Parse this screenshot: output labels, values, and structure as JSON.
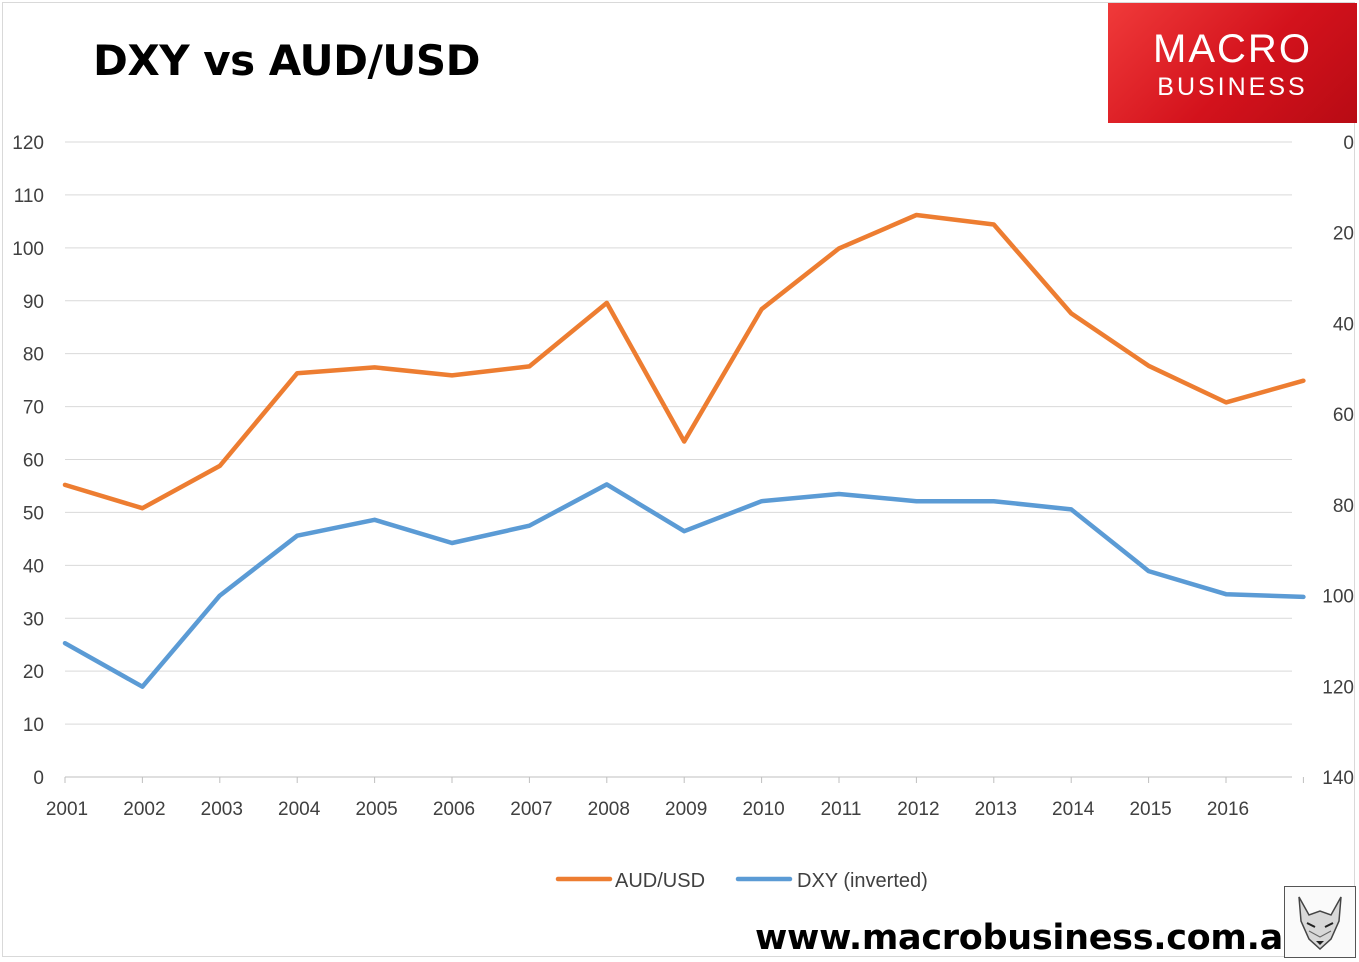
{
  "title": "DXY vs AUD/USD",
  "logo": {
    "line1": "MACRO",
    "line2": "BUSINESS"
  },
  "footer_url": "www.macrobusiness.com.au",
  "mascot_icon": "fox-icon",
  "chart_data": {
    "type": "line",
    "title": "DXY vs AUD/USD",
    "x": [
      "2001",
      "2002",
      "2003",
      "2004",
      "2005",
      "2006",
      "2007",
      "2008",
      "2009",
      "2010",
      "2011",
      "2012",
      "2013",
      "2014",
      "2015",
      "2016",
      "2016.9"
    ],
    "x_tick_labels": [
      "2001",
      "2002",
      "2003",
      "2004",
      "2005",
      "2006",
      "2007",
      "2008",
      "2009",
      "2010",
      "2011",
      "2012",
      "2013",
      "2014",
      "2015",
      "2016"
    ],
    "left_axis": {
      "ylim": [
        0,
        120
      ],
      "ticks": [
        0,
        10,
        20,
        30,
        40,
        50,
        60,
        70,
        80,
        90,
        100,
        110,
        120
      ]
    },
    "right_axis": {
      "ylim": [
        140,
        0
      ],
      "inverted": true,
      "ticks": [
        0,
        20,
        40,
        60,
        80,
        100,
        120,
        140
      ]
    },
    "grid": true,
    "legend_position": "bottom",
    "series": [
      {
        "name": "AUD/USD",
        "axis": "left",
        "color": "#ed7d31",
        "values": [
          55.2,
          50.8,
          58.8,
          76.3,
          77.4,
          75.9,
          77.6,
          89.6,
          63.4,
          88.4,
          99.9,
          106.2,
          104.4,
          87.6,
          77.7,
          70.8,
          74.9
        ]
      },
      {
        "name": "DXY (inverted)",
        "axis": "right",
        "color": "#5b9bd5",
        "values": [
          110.5,
          120.1,
          100.0,
          86.8,
          83.3,
          88.4,
          84.6,
          75.5,
          85.8,
          79.2,
          77.6,
          79.2,
          79.2,
          81.0,
          94.6,
          99.7,
          100.3
        ]
      }
    ]
  }
}
